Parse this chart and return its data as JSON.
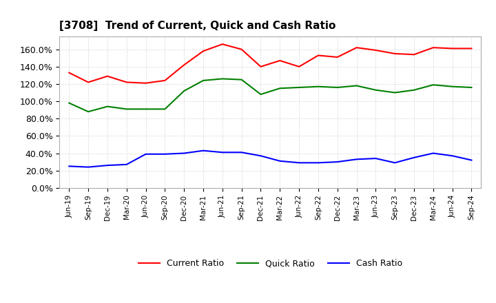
{
  "title": "[3708]  Trend of Current, Quick and Cash Ratio",
  "x_labels": [
    "Jun-19",
    "Sep-19",
    "Dec-19",
    "Mar-20",
    "Jun-20",
    "Sep-20",
    "Dec-20",
    "Mar-21",
    "Jun-21",
    "Sep-21",
    "Dec-21",
    "Mar-22",
    "Jun-22",
    "Sep-22",
    "Dec-22",
    "Mar-23",
    "Jun-23",
    "Sep-23",
    "Dec-23",
    "Mar-24",
    "Jun-24",
    "Sep-24"
  ],
  "current_ratio": [
    133,
    122,
    129,
    122,
    121,
    124,
    142,
    158,
    166,
    160,
    140,
    147,
    140,
    153,
    151,
    162,
    159,
    155,
    154,
    162,
    161,
    161
  ],
  "quick_ratio": [
    98,
    88,
    94,
    91,
    91,
    91,
    112,
    124,
    126,
    125,
    108,
    115,
    116,
    117,
    116,
    118,
    113,
    110,
    113,
    119,
    117,
    116
  ],
  "cash_ratio": [
    25,
    24,
    26,
    27,
    39,
    39,
    40,
    43,
    41,
    41,
    37,
    31,
    29,
    29,
    30,
    33,
    34,
    29,
    35,
    40,
    37,
    32
  ],
  "current_color": "#FF0000",
  "quick_color": "#008000",
  "cash_color": "#0000FF",
  "ylim": [
    0,
    175
  ],
  "yticks": [
    0,
    20,
    40,
    60,
    80,
    100,
    120,
    140,
    160
  ],
  "background_color": "#FFFFFF",
  "plot_bg_color": "#FFFFFF",
  "grid_color": "#BBBBBB"
}
